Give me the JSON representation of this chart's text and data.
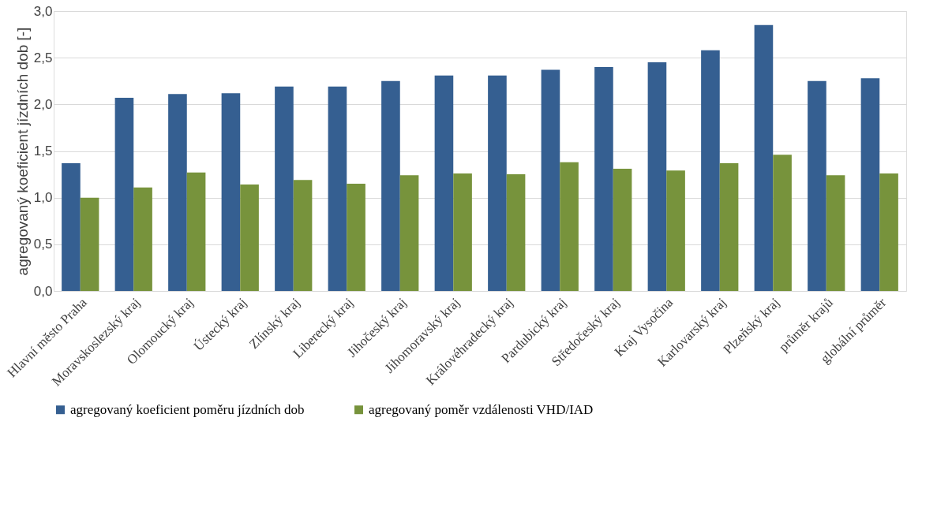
{
  "chart_data": {
    "type": "bar",
    "ylabel": "agregovaný koeficient jízdních dob [-]",
    "categories": [
      "Hlavní město Praha",
      "Moravskoslezský kraj",
      "Olomoucký kraj",
      "Ústecký kraj",
      "Zlínský kraj",
      "Liberecký kraj",
      "Jihočeský kraj",
      "Jihomoravský kraj",
      "Královéhradecký kraj",
      "Pardubický kraj",
      "Středočeský kraj",
      "Kraj Vysočina",
      "Karlovarský kraj",
      "Plzeňský kraj",
      "průměr krajů",
      "globální průměr"
    ],
    "series": [
      {
        "name": "agregovaný koeficient poměru jízdních dob",
        "color": "#355f91",
        "values": [
          1.37,
          2.07,
          2.11,
          2.12,
          2.19,
          2.19,
          2.25,
          2.31,
          2.31,
          2.37,
          2.4,
          2.45,
          2.58,
          2.85,
          2.25,
          2.28
        ]
      },
      {
        "name": "agregovaný poměr vzdálenosti VHD/IAD",
        "color": "#77933c",
        "values": [
          1.0,
          1.11,
          1.27,
          1.14,
          1.19,
          1.15,
          1.24,
          1.26,
          1.25,
          1.38,
          1.31,
          1.29,
          1.37,
          1.46,
          1.24,
          1.26
        ]
      }
    ],
    "ylim": [
      0,
      3
    ],
    "yticks": [
      {
        "value": 0,
        "label": "0,0"
      },
      {
        "value": 0.5,
        "label": "0,5"
      },
      {
        "value": 1,
        "label": "1,0"
      },
      {
        "value": 1.5,
        "label": "1,5"
      },
      {
        "value": 2,
        "label": "2,0"
      },
      {
        "value": 2.5,
        "label": "2,5"
      },
      {
        "value": 3,
        "label": "3,0"
      }
    ],
    "grid": "y",
    "legend": "bottom"
  }
}
